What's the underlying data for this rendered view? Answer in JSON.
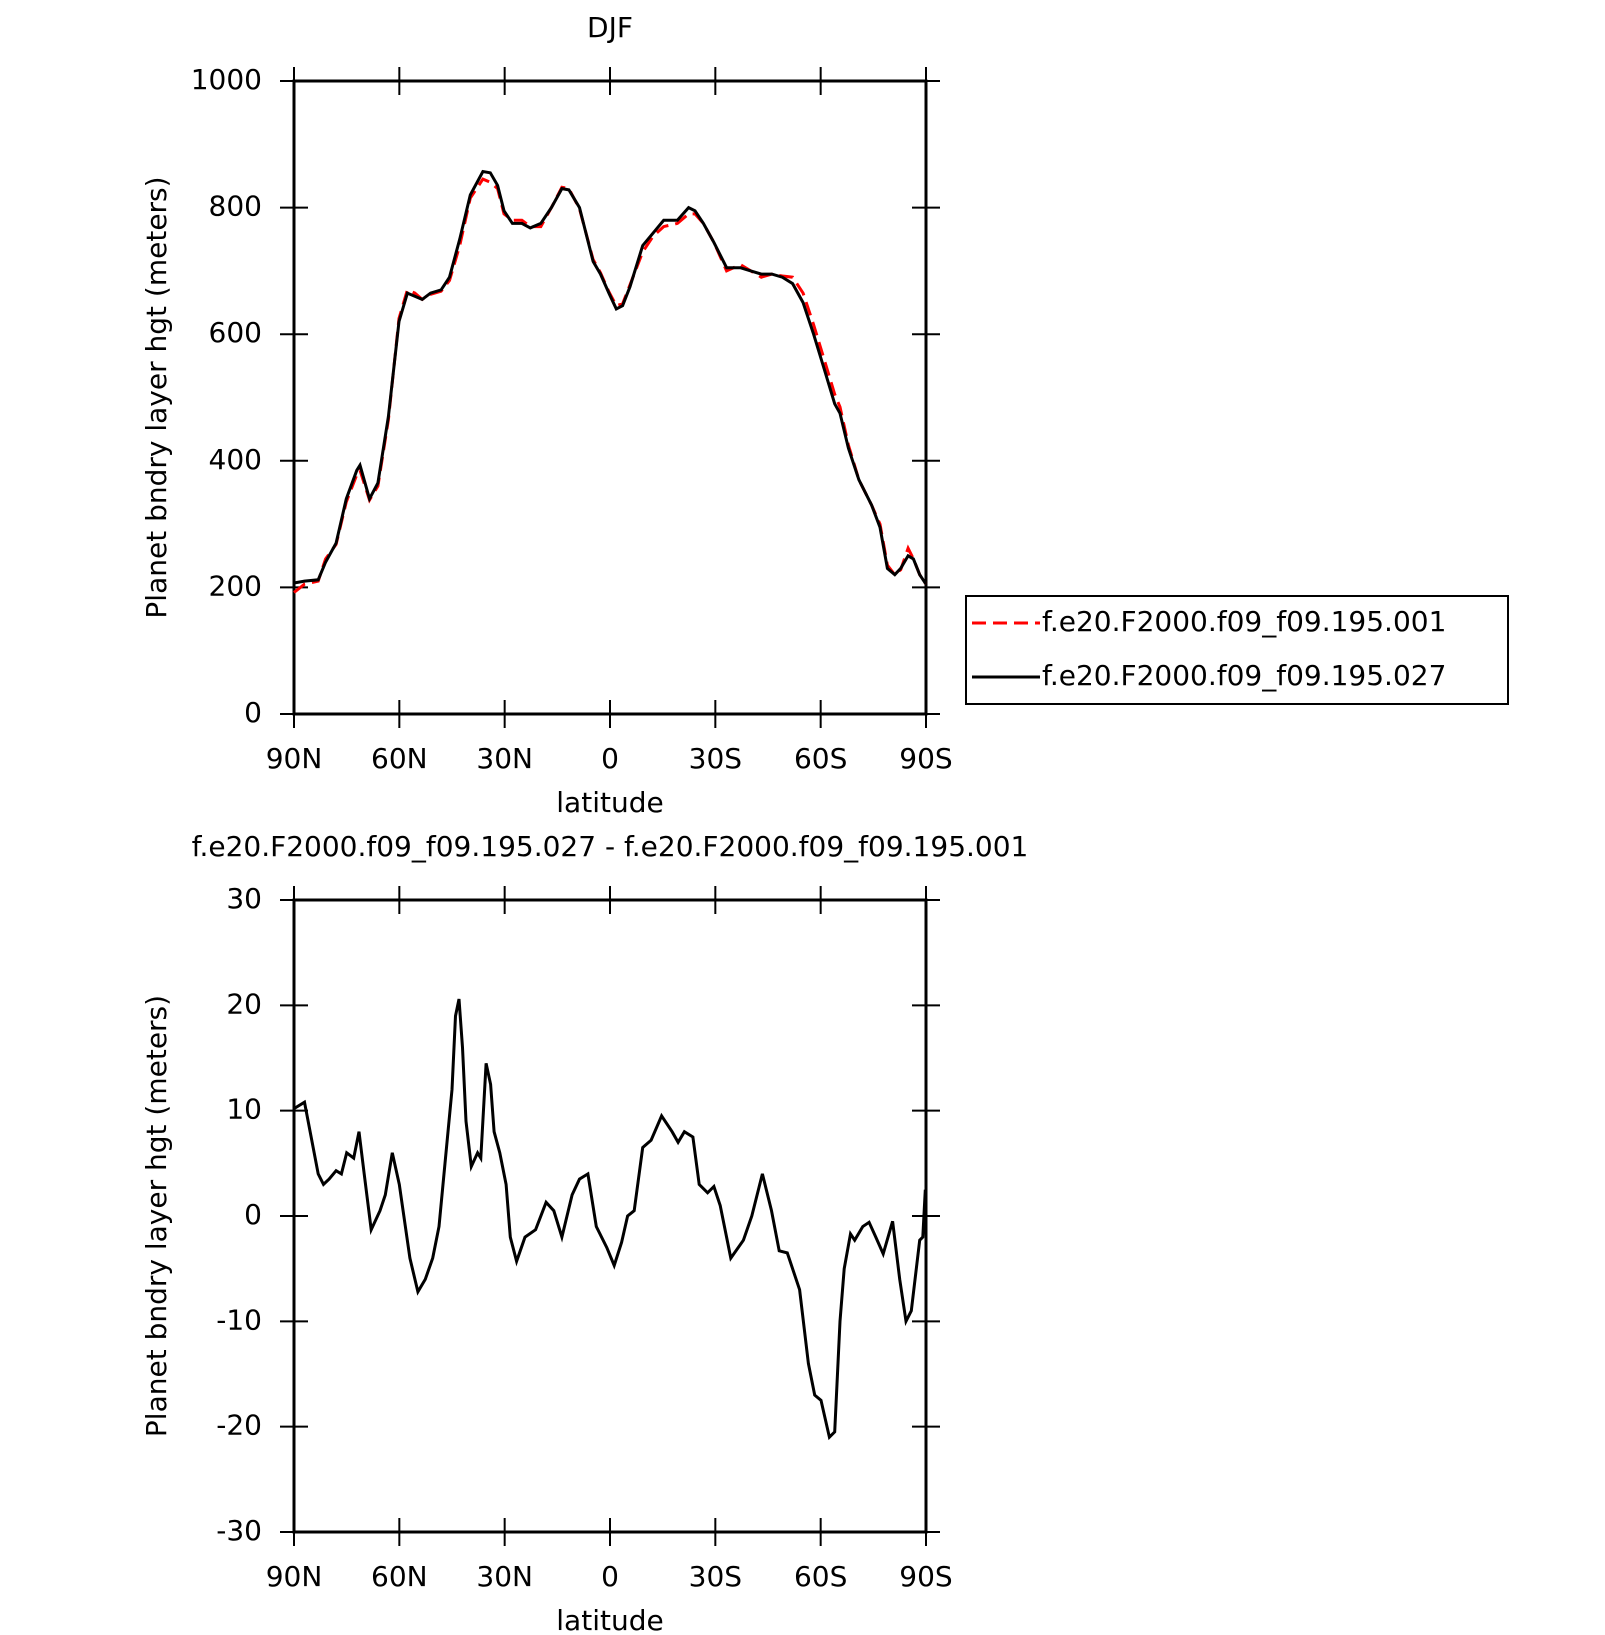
{
  "chart_data": [
    {
      "type": "line",
      "title": "DJF",
      "xlabel": "latitude",
      "ylabel": "Planet bndry layer hgt (meters)",
      "x": [
        90,
        87,
        83.1,
        81,
        78,
        75.1,
        72.1,
        71.2,
        68.5,
        66.1,
        63.1,
        60.1,
        57.7,
        55.6,
        53.5,
        51.1,
        48.1,
        45.7,
        42.8,
        39.8,
        36.2,
        34.1,
        32,
        30.2,
        27.8,
        25.1,
        22.7,
        19.7,
        16.7,
        13.7,
        11.7,
        8.7,
        4.8,
        2.7,
        0.3,
        -1.8,
        -3.6,
        -5.7,
        -9.3,
        -12.3,
        -15.3,
        -19.2,
        -22.4,
        -24.2,
        -26.6,
        -29.6,
        -33.2,
        -37.1,
        -40.1,
        -43.1,
        -46.1,
        -49.1,
        -52,
        -55,
        -58,
        -61,
        -64,
        -65.5,
        -67.9,
        -70.9,
        -74.5,
        -76.9,
        -79,
        -81.1,
        -82.8,
        -84.9,
        -86.4,
        -88.2,
        -90
      ],
      "series": [
        {
          "name": "f.e20.F2000.f09_f09.195.001",
          "color": "#ff0000",
          "dashed": true,
          "values": [
            192,
            205,
            210,
            245,
            268,
            335,
            378,
            385,
            338,
            360,
            465,
            625,
            670,
            665,
            655,
            663,
            668,
            685,
            740,
            815,
            845,
            840,
            830,
            790,
            780,
            780,
            770,
            770,
            800,
            832,
            830,
            798,
            718,
            697,
            667,
            645,
            648,
            678,
            730,
            755,
            770,
            775,
            790,
            790,
            775,
            745,
            700,
            710,
            700,
            690,
            695,
            692,
            690,
            665,
            615,
            560,
            505,
            485,
            425,
            370,
            330,
            300,
            235,
            220,
            228,
            262,
            245,
            220,
            205
          ]
        },
        {
          "name": "f.e20.F2000.f09_f09.195.027",
          "color": "#000000",
          "dashed": false,
          "values": [
            207,
            210,
            212,
            240,
            270,
            340,
            385,
            393,
            340,
            365,
            470,
            620,
            665,
            660,
            655,
            665,
            670,
            690,
            750,
            820,
            857,
            855,
            835,
            795,
            775,
            775,
            768,
            775,
            800,
            830,
            828,
            800,
            715,
            695,
            665,
            640,
            645,
            675,
            740,
            760,
            780,
            780,
            800,
            795,
            775,
            745,
            705,
            705,
            700,
            695,
            695,
            690,
            680,
            650,
            600,
            545,
            490,
            475,
            420,
            370,
            330,
            295,
            230,
            220,
            230,
            250,
            245,
            220,
            205
          ]
        }
      ],
      "xlim": [
        90,
        -90
      ],
      "xticks": [
        {
          "value": 90,
          "label": "90N"
        },
        {
          "value": 60,
          "label": "60N"
        },
        {
          "value": 30,
          "label": "30N"
        },
        0,
        {
          "value": -30,
          "label": "30S"
        },
        {
          "value": -60,
          "label": "60S"
        },
        {
          "value": -90,
          "label": "90S"
        }
      ],
      "ylim": [
        0,
        1000
      ],
      "yticks": [
        0,
        200,
        400,
        600,
        800,
        1000
      ],
      "legend": "right"
    },
    {
      "type": "line",
      "title": "f.e20.F2000.f09_f09.195.027 - f.e20.F2000.f09_f09.195.001",
      "xlabel": "latitude",
      "ylabel": "Planet bndry layer hgt (meters)",
      "x": [
        90,
        87,
        83.1,
        81.6,
        80,
        78,
        76.5,
        75,
        73,
        71.5,
        70,
        68,
        65.5,
        64,
        62,
        60,
        57,
        54.7,
        52.6,
        50.5,
        48.7,
        47,
        45,
        44,
        43,
        42,
        41,
        39.5,
        37.7,
        36.8,
        35.3,
        34,
        33,
        31.4,
        29.6,
        28.4,
        26.6,
        24.2,
        21.2,
        18.2,
        16,
        13.7,
        10.8,
        8.7,
        6.3,
        3.9,
        0.9,
        -1.2,
        -3.3,
        -5,
        -6.9,
        -9.3,
        -11.7,
        -14.7,
        -17.7,
        -19.4,
        -21.2,
        -23.6,
        -25.4,
        -27.8,
        -29.6,
        -31.4,
        -34.4,
        -38,
        -40.4,
        -43.4,
        -46,
        -48.2,
        -50.5,
        -54,
        -56.5,
        -58.3,
        -60.1,
        -62.5,
        -64,
        -65.5,
        -66.7,
        -68.5,
        -69.7,
        -72,
        -73.8,
        -75.7,
        -77.8,
        -80.5,
        -82.5,
        -84.3,
        -85.8,
        -88.2,
        -89.1,
        -89.8
      ],
      "series": [
        {
          "color": "#000000",
          "dashed": false,
          "values": [
            10.2,
            10.8,
            4,
            3,
            3.5,
            4.3,
            4,
            6,
            5.5,
            8,
            4,
            -1.3,
            0.5,
            2,
            6,
            3,
            -4,
            -7.2,
            -6,
            -4,
            -1,
            5,
            12,
            19,
            20.6,
            16,
            9,
            4.7,
            6,
            5.5,
            14.5,
            12.5,
            8,
            6,
            3,
            -2,
            -4.3,
            -2,
            -1.3,
            1.3,
            0.5,
            -2,
            2,
            3.5,
            4,
            -1,
            -3,
            -4.7,
            -2.5,
            0,
            0.5,
            6.5,
            7.2,
            9.5,
            8,
            7,
            8,
            7.5,
            3,
            2.2,
            2.8,
            1,
            -4,
            -2.3,
            0,
            4,
            0.5,
            -3.3,
            -3.5,
            -7,
            -14,
            -17,
            -17.5,
            -21,
            -20.5,
            -10,
            -5,
            -1.7,
            -2.3,
            -1,
            -0.6,
            -2,
            -3.6,
            -0.5,
            -6,
            -10,
            -9,
            -2.3,
            -2,
            2.5
          ]
        }
      ],
      "xlim": [
        90,
        -90
      ],
      "xticks": [
        {
          "value": 90,
          "label": "90N"
        },
        {
          "value": 60,
          "label": "60N"
        },
        {
          "value": 30,
          "label": "30N"
        },
        0,
        {
          "value": -30,
          "label": "30S"
        },
        {
          "value": -60,
          "label": "60S"
        },
        {
          "value": -90,
          "label": "90S"
        }
      ],
      "ylim": [
        -30,
        30
      ],
      "yticks": [
        -30,
        -20,
        -10,
        0,
        10,
        20,
        30
      ]
    }
  ]
}
